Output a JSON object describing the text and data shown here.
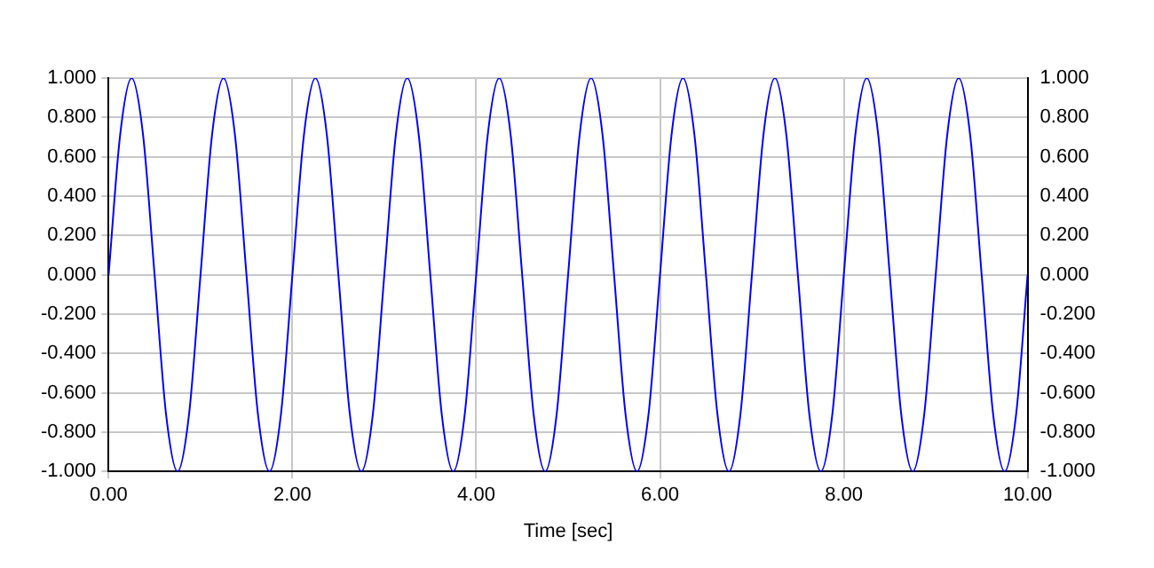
{
  "chart_data": {
    "type": "line",
    "xlabel": "Time [sec]",
    "x": [
      0,
      0.125,
      0.25,
      0.375,
      0.5,
      0.625,
      0.75,
      0.875,
      1,
      1.125,
      1.25,
      1.375,
      1.5,
      1.625,
      1.75,
      1.875,
      2,
      2.125,
      2.25,
      2.375,
      2.5,
      2.625,
      2.75,
      2.875,
      3,
      3.125,
      3.25,
      3.375,
      3.5,
      3.625,
      3.75,
      3.875,
      4,
      4.125,
      4.25,
      4.375,
      4.5,
      4.625,
      4.75,
      4.875,
      5,
      5.125,
      5.25,
      5.375,
      5.5,
      5.625,
      5.75,
      5.875,
      6,
      6.125,
      6.25,
      6.375,
      6.5,
      6.625,
      6.75,
      6.875,
      7,
      7.125,
      7.25,
      7.375,
      7.5,
      7.625,
      7.75,
      7.875,
      8,
      8.125,
      8.25,
      8.375,
      8.5,
      8.625,
      8.75,
      8.875,
      9,
      9.125,
      9.25,
      9.375,
      9.5,
      9.625,
      9.75,
      9.875,
      10
    ],
    "series": [
      {
        "color": "#0000ff",
        "values": [
          0,
          0.71,
          1,
          0.71,
          0,
          -0.71,
          -1,
          -0.71,
          0,
          0.71,
          1,
          0.71,
          0,
          -0.71,
          -1,
          -0.71,
          0,
          0.71,
          1,
          0.71,
          0,
          -0.71,
          -1,
          -0.71,
          0,
          0.71,
          1,
          0.71,
          0,
          -0.71,
          -1,
          -0.71,
          0,
          0.71,
          1,
          0.71,
          0,
          -0.71,
          -1,
          -0.71,
          0,
          0.71,
          1,
          0.71,
          0,
          -0.71,
          -1,
          -0.71,
          0,
          0.71,
          1,
          0.71,
          0,
          -0.71,
          -1,
          -0.71,
          0,
          0.71,
          1,
          0.71,
          0,
          -0.71,
          -1,
          -0.71,
          0,
          0.71,
          1,
          0.71,
          0,
          -0.71,
          -1,
          -0.71,
          0,
          0.71,
          1,
          0.71,
          0,
          -0.71,
          -1,
          -0.71,
          0
        ]
      }
    ],
    "xlim": [
      0,
      10
    ],
    "xticks": [
      {
        "value": 0,
        "label": "0.00"
      },
      {
        "value": 2,
        "label": "2.00"
      },
      {
        "value": 4,
        "label": "4.00"
      },
      {
        "value": 6,
        "label": "6.00"
      },
      {
        "value": 8,
        "label": "8.00"
      },
      {
        "value": 10,
        "label": "10.00"
      }
    ],
    "ylim": [
      -1,
      1
    ],
    "yticks": [
      {
        "value": -1,
        "label": "-1.000"
      },
      {
        "value": -0.8,
        "label": "-0.800"
      },
      {
        "value": -0.6,
        "label": "-0.600"
      },
      {
        "value": -0.4,
        "label": "-0.400"
      },
      {
        "value": -0.2,
        "label": "-0.200"
      },
      {
        "value": 0,
        "label": "0.000"
      },
      {
        "value": 0.2,
        "label": "0.200"
      },
      {
        "value": 0.4,
        "label": "0.400"
      },
      {
        "value": 0.6,
        "label": "0.600"
      },
      {
        "value": 0.8,
        "label": "0.800"
      },
      {
        "value": 1,
        "label": "1.000"
      }
    ],
    "y2lim": [
      -1,
      1
    ],
    "y2ticks": [
      {
        "value": -1,
        "label": "-1.000"
      },
      {
        "value": -0.8,
        "label": "-0.800"
      },
      {
        "value": -0.6,
        "label": "-0.600"
      },
      {
        "value": -0.4,
        "label": "-0.400"
      },
      {
        "value": -0.2,
        "label": "-0.200"
      },
      {
        "value": 0,
        "label": "0.000"
      },
      {
        "value": 0.2,
        "label": "0.200"
      },
      {
        "value": 0.4,
        "label": "0.400"
      },
      {
        "value": 0.6,
        "label": "0.600"
      },
      {
        "value": 0.8,
        "label": "0.800"
      },
      {
        "value": 1,
        "label": "1.000"
      }
    ],
    "grid": true,
    "marker": "none",
    "line_style": "solid"
  }
}
